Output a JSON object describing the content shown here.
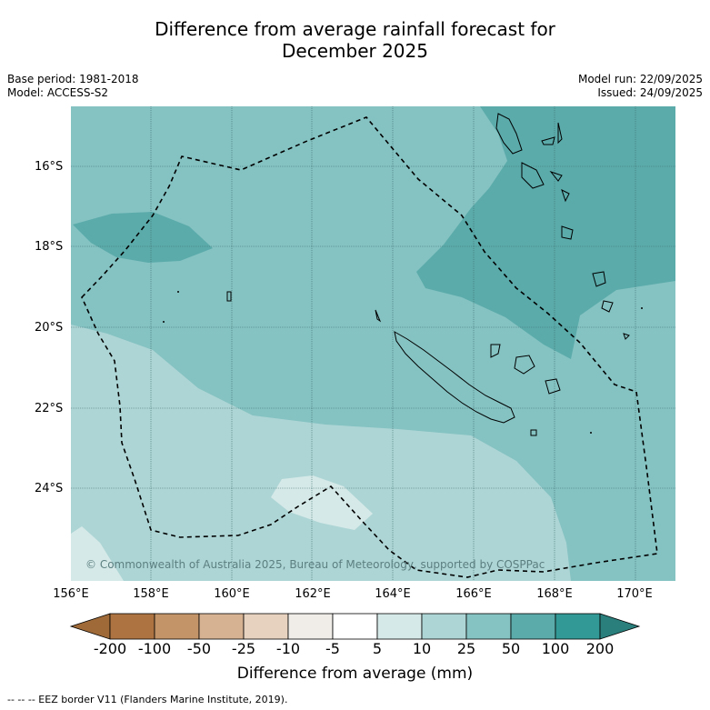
{
  "title_line1": "Difference from average rainfall forecast for",
  "title_line2": "December 2025",
  "meta": {
    "base_period": "Base period: 1981-2018",
    "model": "Model: ACCESS-S2",
    "model_run": "Model run: 22/09/2025",
    "issued": "Issued: 24/09/2025"
  },
  "map": {
    "lat_labels": [
      "16°S",
      "18°S",
      "20°S",
      "22°S",
      "24°S"
    ],
    "lon_labels": [
      "156°E",
      "158°E",
      "160°E",
      "162°E",
      "164°E",
      "166°E",
      "168°E",
      "170°E"
    ],
    "copyright": "© Commonwealth of Australia 2025, Bureau of Meteorology, supported by COSPPac"
  },
  "colorbar": {
    "title": "Difference from average (mm)",
    "tick_labels": [
      "-200",
      "-100",
      "-50",
      "-25",
      "-10",
      "-5",
      "5",
      "10",
      "25",
      "50",
      "100",
      "200"
    ],
    "colors": [
      "#9f6a38",
      "#ad7441",
      "#c29468",
      "#d6b293",
      "#e6d2bf",
      "#f0ece8",
      "#ffffff",
      "#d5e9e8",
      "#aed5d5",
      "#85c2c2",
      "#5babab",
      "#339997",
      "#2a7e7c"
    ]
  },
  "footer": "--  --  -- EEZ border V11 (Flanders Marine Institute, 2019)."
}
